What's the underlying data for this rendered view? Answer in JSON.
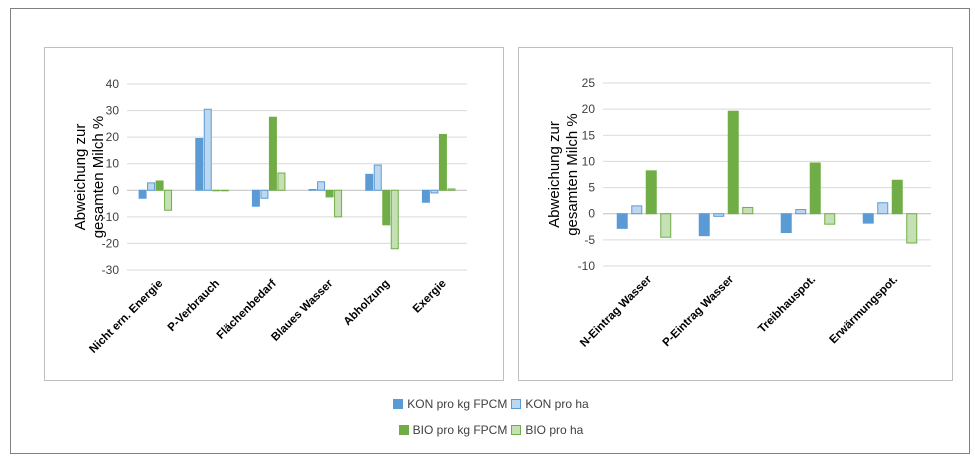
{
  "chart_data": [
    {
      "type": "bar",
      "ylabel": [
        "Abweichung zur",
        "gesamten Milch %"
      ],
      "ylim": [
        -30,
        40
      ],
      "yticks": [
        -30,
        -20,
        -10,
        0,
        10,
        20,
        30,
        40
      ],
      "grid": true,
      "categories": [
        "Nicht ern. Energie",
        "P-Verbrauch",
        "Flächenbedarf",
        "Blaues Wasser",
        "Abholzung",
        "Exergie"
      ],
      "series": [
        {
          "name": "KON pro kg FPCM",
          "values": [
            -3,
            19.5,
            -6,
            0.3,
            6,
            -4.5
          ]
        },
        {
          "name": "KON pro ha",
          "values": [
            2.8,
            30.5,
            -3,
            3.2,
            9.5,
            -1
          ]
        },
        {
          "name": "BIO pro kg FPCM",
          "values": [
            3.5,
            0,
            27.5,
            -2.5,
            -13,
            21
          ]
        },
        {
          "name": "BIO pro ha",
          "values": [
            -7.5,
            0,
            6.5,
            -10,
            -22,
            0.5
          ]
        }
      ]
    },
    {
      "type": "bar",
      "ylabel": [
        "Abweichung zur",
        "gesamten Milch %"
      ],
      "ylim": [
        -10,
        25
      ],
      "yticks": [
        -10,
        -5,
        0,
        5,
        10,
        15,
        20,
        25
      ],
      "grid": true,
      "categories": [
        "N-Eintrag Wasser",
        "P-Eintrag Wasser",
        "Treibhauspot.",
        "Erwärmungspot."
      ],
      "series": [
        {
          "name": "KON pro kg FPCM",
          "values": [
            -2.8,
            -4.2,
            -3.6,
            -1.8
          ]
        },
        {
          "name": "KON pro ha",
          "values": [
            1.5,
            -0.5,
            0.8,
            2.1
          ]
        },
        {
          "name": "BIO pro kg FPCM",
          "values": [
            8.2,
            19.6,
            9.7,
            6.4
          ]
        },
        {
          "name": "BIO pro ha",
          "values": [
            -4.5,
            1.2,
            -2,
            -5.6
          ]
        }
      ]
    }
  ],
  "colors": {
    "kon_fpcm": "#5b9bd5",
    "kon_ha_fill": "#bdd7ee",
    "kon_ha_stroke": "#5b9bd5",
    "bio_fpcm": "#70ad47",
    "bio_ha_fill": "#c5e0b4",
    "bio_ha_stroke": "#70ad47",
    "grid": "#d9d9d9",
    "text": "#404040"
  },
  "legend": {
    "kon_fpcm": "KON pro kg FPCM",
    "kon_ha": "KON pro ha",
    "bio_fpcm": "BIO pro kg FPCM",
    "bio_ha": "BIO pro ha"
  }
}
